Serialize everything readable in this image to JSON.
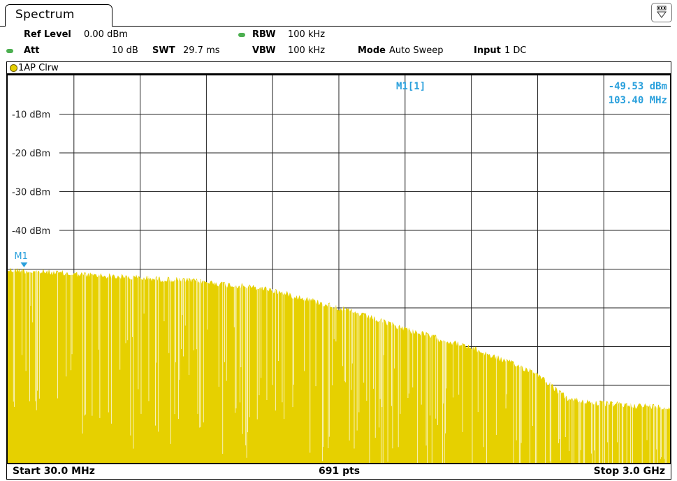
{
  "tab": {
    "title": "Spectrum"
  },
  "header": {
    "ref_level_label": "Ref Level",
    "ref_level_value": "0.00 dBm",
    "att_label": "Att",
    "att_value": "10 dB",
    "swt_label": "SWT",
    "swt_value": "29.7 ms",
    "rbw_label": "RBW",
    "rbw_value": "100 kHz",
    "vbw_label": "VBW",
    "vbw_value": "100 kHz",
    "mode_label": "Mode",
    "mode_value": "Auto Sweep",
    "input_label": "Input",
    "input_value": "1 DC"
  },
  "trace": {
    "label": "1AP Clrw",
    "color": "#e6d000"
  },
  "marker": {
    "name": "M1",
    "readout_label": "M1[1]",
    "readout_level": "-49.53 dBm",
    "readout_freq": "103.40 MHz",
    "color": "#2aa0dc"
  },
  "footer": {
    "start": "Start 30.0 MHz",
    "points": "691 pts",
    "stop": "Stop 3.0 GHz"
  },
  "chart_data": {
    "type": "area",
    "x_start_mhz": 30.0,
    "x_stop_mhz": 3000.0,
    "points": 691,
    "ylim": [
      -100,
      0
    ],
    "y_tick_labels": [
      "-10 dBm",
      "-20 dBm",
      "-30 dBm",
      "-40 dBm"
    ],
    "y_tick_values": [
      -10,
      -20,
      -30,
      -40
    ],
    "x_divisions": 10,
    "y_divisions": 10,
    "grid": true,
    "envelope_dbm": {
      "x_mhz": [
        30,
        300,
        600,
        900,
        1200,
        1500,
        1800,
        2100,
        2400,
        2500,
        2550,
        2700,
        3000
      ],
      "y": [
        -49.5,
        -50.5,
        -51.5,
        -52.5,
        -54.5,
        -59.0,
        -64.5,
        -69.5,
        -76.0,
        -81.0,
        -83.0,
        -84.0,
        -85.0
      ]
    },
    "marker": {
      "name": "M1",
      "x_mhz": 103.4,
      "y_dbm": -49.53
    }
  }
}
